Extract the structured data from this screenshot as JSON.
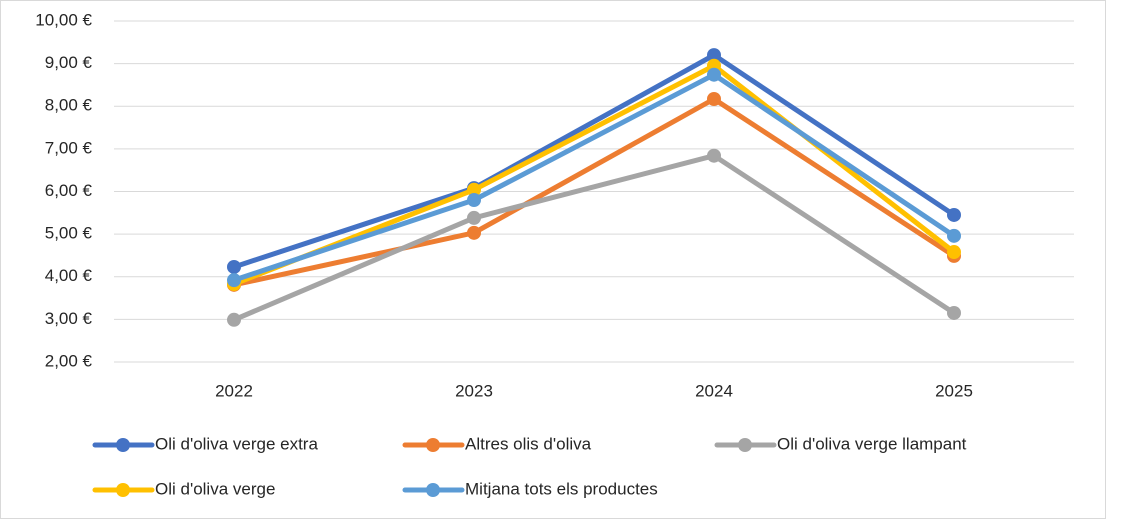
{
  "chart_data": {
    "type": "line",
    "categories": [
      "2022",
      "2023",
      "2024",
      "2025"
    ],
    "series": [
      {
        "name": "Oli d'oliva verge extra",
        "color": "#4472c4",
        "values": [
          4.23,
          6.08,
          9.2,
          5.45
        ]
      },
      {
        "name": "Altres olis d'oliva",
        "color": "#ed7d31",
        "values": [
          3.81,
          5.03,
          8.17,
          4.49
        ]
      },
      {
        "name": "Oli d'oliva verge llampant",
        "color": "#a5a5a5",
        "values": [
          2.99,
          5.38,
          6.84,
          3.15
        ]
      },
      {
        "name": "Oli d'oliva verge",
        "color": "#ffc000",
        "values": [
          3.83,
          6.04,
          8.95,
          4.58
        ]
      },
      {
        "name": "Mitjana tots els productes",
        "color": "#5b9bd5",
        "values": [
          3.92,
          5.8,
          8.74,
          4.96
        ]
      }
    ],
    "ylim": [
      2,
      10
    ],
    "yticks": [
      {
        "value": 2,
        "label": "2,00 €"
      },
      {
        "value": 3,
        "label": "3,00 €"
      },
      {
        "value": 4,
        "label": "4,00 €"
      },
      {
        "value": 5,
        "label": "5,00 €"
      },
      {
        "value": 6,
        "label": "6,00 €"
      },
      {
        "value": 7,
        "label": "7,00 €"
      },
      {
        "value": 8,
        "label": "8,00 €"
      },
      {
        "value": 9,
        "label": "9,00 €"
      },
      {
        "value": 10,
        "label": "10,00 €"
      }
    ],
    "grid": true,
    "legend": "bottom"
  }
}
